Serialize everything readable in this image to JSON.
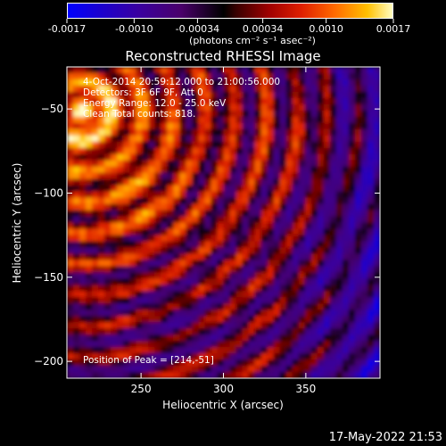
{
  "chart_data": {
    "type": "heatmap",
    "title": "Reconstructed RHESSI Image",
    "xlabel": "Heliocentric X (arcsec)",
    "ylabel": "Heliocentric Y (arcsec)",
    "x_range": [
      205,
      395
    ],
    "y_range": [
      -210,
      -25
    ],
    "x_ticks": [
      250,
      300,
      350
    ],
    "y_ticks": [
      -50,
      -100,
      -150,
      -200
    ],
    "colorbar": {
      "min": -0.0017,
      "max": 0.0017,
      "tick_values": [
        -0.0017,
        -0.001,
        -0.00034,
        0.00034,
        0.001,
        0.0017
      ],
      "tick_labels": [
        "-0.0017",
        "-0.0010",
        "-0.00034",
        "0.00034",
        "0.0010",
        "0.0017"
      ],
      "colors": [
        "#0000ff",
        "#3a00a0",
        "#000000",
        "#a00000",
        "#ff6a00",
        "#ffffc8"
      ]
    },
    "annotations": [
      "4-Oct-2014 20:59:12.000 to 21:00:56.000",
      "Detectors: 3F 6F 9F, Att 0",
      "Energy Range: 12.0 - 25.0 keV",
      "Clean    Total counts: 818.",
      "Position of Peak = [214,-51]"
    ],
    "peak": [
      214,
      -51
    ],
    "grid": false
  },
  "colorbar_units": "(photons cm⁻² s⁻¹ asec⁻²)",
  "footer_date": "17-May-2022 21:53"
}
